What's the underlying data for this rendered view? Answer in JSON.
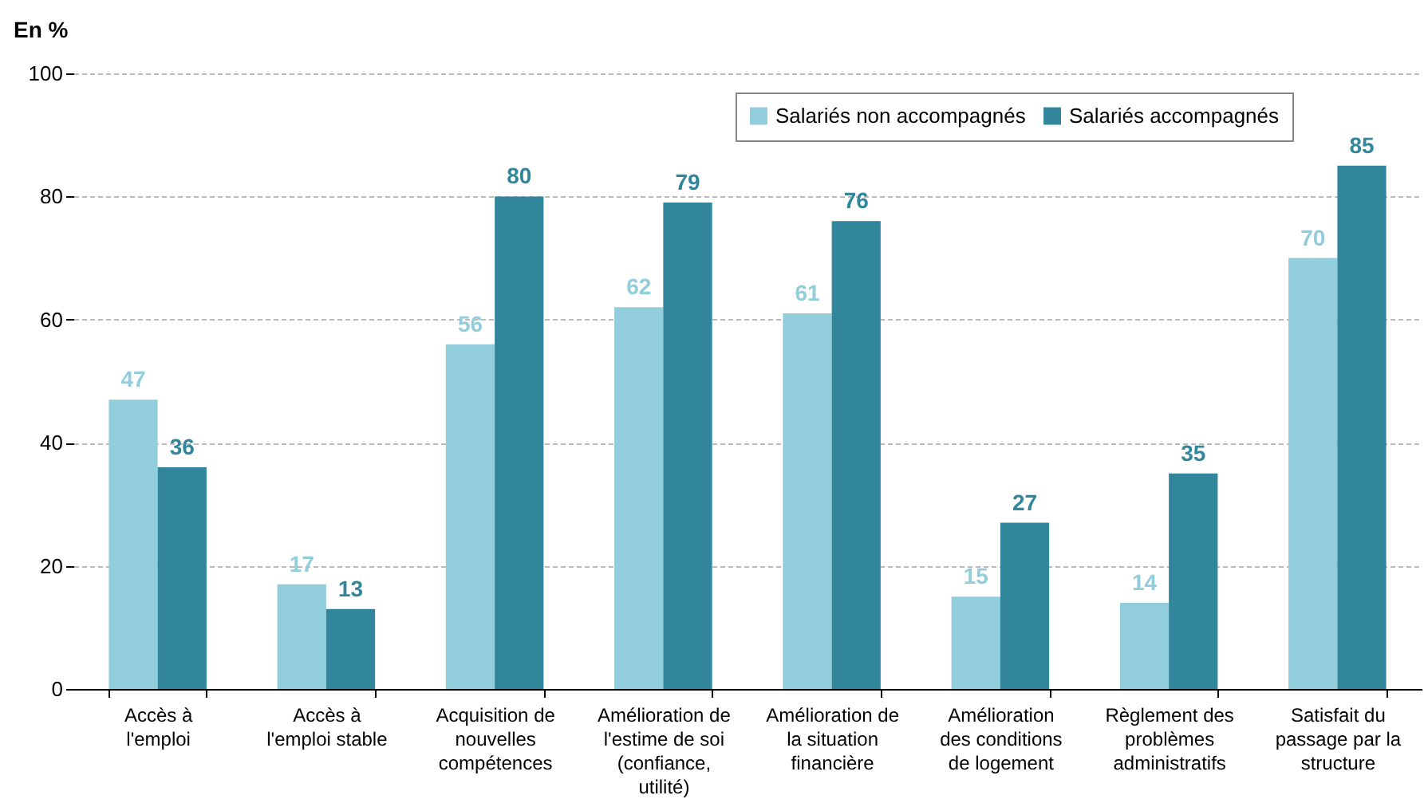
{
  "chart_data": {
    "type": "bar",
    "ylabel": "En %",
    "categories": [
      "Accès à l'emploi",
      "Accès à l'emploi stable",
      "Acquisition de nouvelles compétences",
      "Amélioration de l'estime de soi (confiance, utilité)",
      "Amélioration de la situation financière",
      "Amélioration des conditions de logement",
      "Règlement des problèmes administratifs",
      "Satisfait du passage par la structure"
    ],
    "series": [
      {
        "name": "Salariés non accompagnés",
        "color": "#92cddc",
        "values": [
          47,
          17,
          56,
          62,
          61,
          15,
          14,
          70
        ]
      },
      {
        "name": "Salariés accompagnés",
        "color": "#31869b",
        "values": [
          36,
          13,
          80,
          79,
          76,
          27,
          35,
          85
        ]
      }
    ],
    "ylim": [
      0,
      100
    ],
    "yticks": [
      0,
      20,
      40,
      60,
      80,
      100
    ],
    "grid": "y",
    "legend": "top right",
    "data_labels": true
  }
}
